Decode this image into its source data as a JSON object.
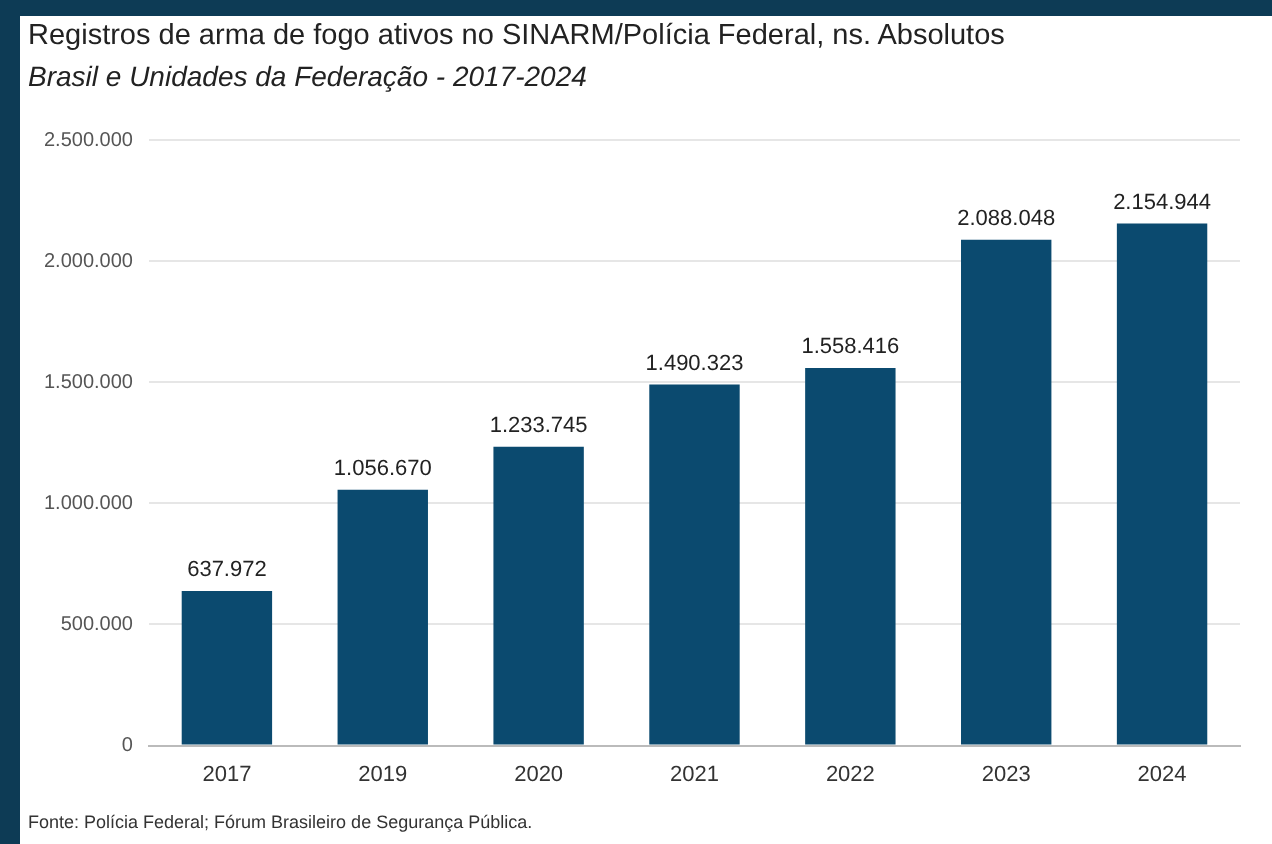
{
  "chart_data": {
    "type": "bar",
    "title": "Registros de arma de fogo ativos no SINARM/Polícia Federal, ns. Absolutos",
    "subtitle": "Brasil e Unidades da Federação - 2017-2024",
    "categories": [
      "2017",
      "2019",
      "2020",
      "2021",
      "2022",
      "2023",
      "2024"
    ],
    "values": [
      637972,
      1056670,
      1233745,
      1490323,
      1558416,
      2088048,
      2154944
    ],
    "value_labels": [
      "637.972",
      "1.056.670",
      "1.233.745",
      "1.490.323",
      "1.558.416",
      "2.088.048",
      "2.154.944"
    ],
    "color": "#0b4a6f",
    "ylim": [
      0,
      2500000
    ],
    "yticks": [
      0,
      {
        "value": 500000,
        "label": "500.000"
      },
      {
        "value": 1000000,
        "label": "1.000.000"
      },
      {
        "value": 1500000,
        "label": "1.500.000"
      },
      {
        "value": 2000000,
        "label": "2.000.000"
      },
      {
        "value": 2500000,
        "label": "2.500.000"
      }
    ],
    "grid": "y",
    "annotations": [
      "Fonte: Polícia Federal; Fórum Brasileiro de Segurança Pública."
    ]
  }
}
